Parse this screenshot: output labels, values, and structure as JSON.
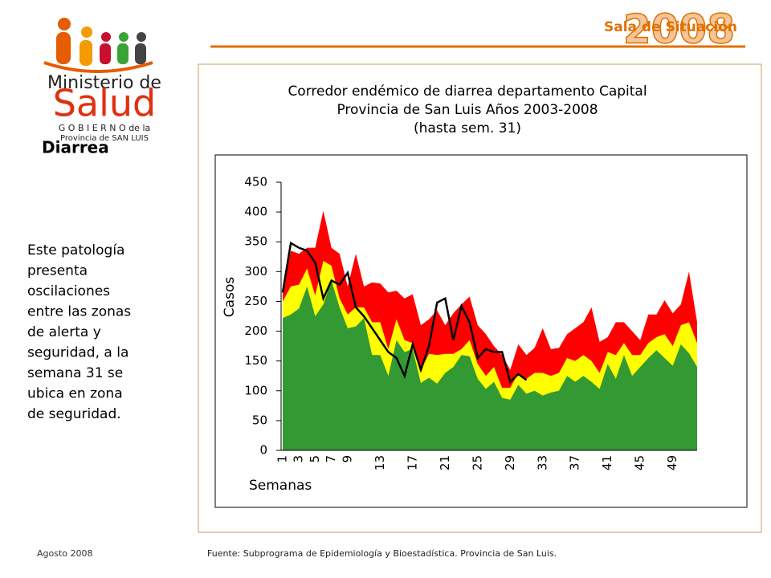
{
  "header": {
    "year": "2008",
    "subtitle": "Sala de Situación"
  },
  "logo": {
    "line1": "Ministerio de",
    "line2": "Salud",
    "line3": "G O B I E R N O de la",
    "line4": "Provincia de SAN LUIS"
  },
  "sidebar": {
    "title": "Diarrea",
    "lines": [
      "Este patología",
      "presenta",
      "oscilaciones",
      "entre las zonas",
      "de alerta y",
      "seguridad,  a la",
      "semana 31  se",
      "ubica en  zona",
      "de seguridad."
    ]
  },
  "footer": {
    "date": "Agosto 2008",
    "source": "Fuente: Subprograma de Epidemiología y Bioestadística. Provincia de San Luis."
  },
  "chart_data": {
    "type": "area",
    "title": [
      "Corredor endémico de diarrea departamento Capital",
      "Provincia de San Luis Años 2003-2008",
      "(hasta sem. 31)"
    ],
    "xlabel": "Semanas",
    "ylabel": "Casos",
    "categories": [
      1,
      null,
      3,
      null,
      5,
      null,
      7,
      null,
      9,
      null,
      null,
      null,
      13,
      null,
      null,
      null,
      17,
      null,
      null,
      null,
      21,
      null,
      null,
      null,
      25,
      null,
      null,
      null,
      29,
      null,
      null,
      null,
      33,
      null,
      null,
      null,
      37,
      null,
      null,
      null,
      41,
      null,
      null,
      null,
      45,
      null,
      null,
      null,
      49,
      null,
      null,
      null
    ],
    "ylim": [
      0,
      450
    ],
    "yticks": [
      0,
      50,
      100,
      150,
      200,
      250,
      300,
      350,
      400,
      450
    ],
    "series": [
      {
        "color": "#ff0000",
        "values": [
          270,
          335,
          330,
          340,
          340,
          402,
          340,
          330,
          275,
          330,
          275,
          282,
          280,
          265,
          268,
          255,
          262,
          210,
          220,
          235,
          210,
          230,
          245,
          258,
          210,
          195,
          175,
          160,
          135,
          178,
          160,
          172,
          205,
          170,
          172,
          195,
          205,
          215,
          240,
          182,
          190,
          215,
          215,
          200,
          185,
          228,
          228,
          252,
          230,
          245,
          300,
          215
        ]
      },
      {
        "color": "#ffff00",
        "values": [
          250,
          275,
          278,
          305,
          260,
          318,
          310,
          255,
          228,
          240,
          240,
          215,
          215,
          170,
          220,
          185,
          180,
          135,
          162,
          160,
          162,
          162,
          170,
          185,
          145,
          125,
          140,
          105,
          105,
          130,
          120,
          130,
          130,
          125,
          130,
          155,
          150,
          160,
          150,
          130,
          165,
          160,
          180,
          160,
          160,
          180,
          190,
          195,
          175,
          210,
          215,
          180
        ]
      },
      {
        "color": "#339933",
        "values": [
          222,
          228,
          238,
          275,
          225,
          245,
          285,
          240,
          205,
          208,
          222,
          160,
          160,
          125,
          185,
          165,
          170,
          113,
          122,
          112,
          130,
          140,
          160,
          158,
          120,
          103,
          115,
          88,
          85,
          110,
          95,
          100,
          92,
          97,
          100,
          125,
          115,
          125,
          115,
          103,
          145,
          120,
          160,
          125,
          140,
          155,
          168,
          155,
          142,
          178,
          163,
          140
        ]
      },
      {
        "type": "line",
        "color": "#000000",
        "values": [
          265,
          348,
          340,
          335,
          315,
          255,
          285,
          278,
          298,
          240,
          225,
          205,
          185,
          165,
          155,
          125,
          178,
          135,
          175,
          248,
          255,
          185,
          242,
          215,
          155,
          170,
          165,
          165,
          115,
          128,
          118,
          null,
          null,
          null,
          null,
          null,
          null,
          null,
          null,
          null,
          null,
          null,
          null,
          null,
          null,
          null,
          null,
          null,
          null,
          null,
          null,
          null
        ]
      }
    ]
  }
}
